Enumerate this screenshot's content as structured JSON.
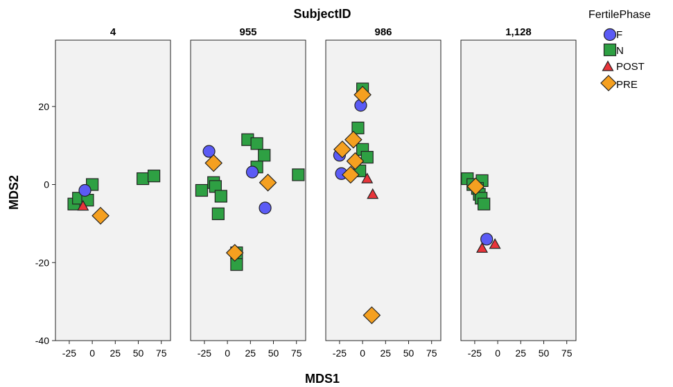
{
  "chart_data": {
    "type": "scatter",
    "title": "",
    "facet_label": "SubjectID",
    "xlabel": "MDS1",
    "ylabel": "MDS2",
    "xlim": [
      -40,
      85
    ],
    "ylim": [
      -40,
      37
    ],
    "x_ticks": [
      -25,
      0,
      25,
      50,
      75
    ],
    "x_tick_labels": [
      "-25",
      "0",
      "25",
      "50",
      "75"
    ],
    "y_ticks": [
      20,
      0,
      -20,
      -40
    ],
    "y_tick_labels": [
      "20",
      "0",
      "-20",
      "-40"
    ],
    "grid": false,
    "legend": {
      "title": "FertilePhase",
      "position": "top-right",
      "entries": [
        {
          "label": "F",
          "shape": "circle",
          "color": "#5b5bf5"
        },
        {
          "label": "N",
          "shape": "square",
          "color": "#2ea043"
        },
        {
          "label": "POST",
          "shape": "triangle",
          "color": "#e8343a"
        },
        {
          "label": "PRE",
          "shape": "diamond",
          "color": "#f5a020"
        }
      ]
    },
    "panels": [
      {
        "title": "4",
        "series": [
          {
            "name": "F",
            "points": [
              [
                -8,
                -1.5
              ]
            ]
          },
          {
            "name": "N",
            "points": [
              [
                -20,
                -5
              ],
              [
                -15,
                -3.5
              ],
              [
                -5,
                -4
              ],
              [
                0,
                0
              ],
              [
                55,
                1.5
              ],
              [
                67,
                2.2
              ]
            ]
          },
          {
            "name": "POST",
            "points": [
              [
                -10,
                -5.5
              ]
            ]
          },
          {
            "name": "PRE",
            "points": [
              [
                9,
                -8
              ]
            ]
          }
        ]
      },
      {
        "title": "955",
        "series": [
          {
            "name": "F",
            "points": [
              [
                -20,
                8.5
              ],
              [
                27,
                3.2
              ],
              [
                41,
                -6
              ]
            ]
          },
          {
            "name": "N",
            "points": [
              [
                -28,
                -1.5
              ],
              [
                -15,
                0.5
              ],
              [
                -13,
                -0.5
              ],
              [
                -7,
                -3
              ],
              [
                -10,
                -7.5
              ],
              [
                22,
                11.5
              ],
              [
                32,
                10.5
              ],
              [
                40,
                7.5
              ],
              [
                32,
                4.5
              ],
              [
                77,
                2.5
              ],
              [
                10,
                -17.5
              ],
              [
                10,
                -20.5
              ]
            ]
          },
          {
            "name": "POST",
            "points": []
          },
          {
            "name": "PRE",
            "points": [
              [
                -15,
                5.5
              ],
              [
                44,
                0.5
              ],
              [
                8,
                -17.5
              ]
            ]
          }
        ]
      },
      {
        "title": "986",
        "series": [
          {
            "name": "F",
            "points": [
              [
                -25,
                7.5
              ],
              [
                -23,
                2.8
              ],
              [
                -2,
                20.3
              ]
            ]
          },
          {
            "name": "N",
            "points": [
              [
                -5,
                14.5
              ],
              [
                0,
                24.5
              ],
              [
                0,
                9
              ],
              [
                5,
                7
              ],
              [
                -3,
                3.5
              ]
            ]
          },
          {
            "name": "POST",
            "points": [
              [
                5,
                1.5
              ],
              [
                11,
                -2.5
              ]
            ]
          },
          {
            "name": "PRE",
            "points": [
              [
                -22,
                9
              ],
              [
                -10,
                11.5
              ],
              [
                -8,
                6
              ],
              [
                -13,
                2.5
              ],
              [
                0,
                23
              ],
              [
                10,
                -33.5
              ]
            ]
          }
        ]
      },
      {
        "title": "1,128",
        "series": [
          {
            "name": "F",
            "points": [
              [
                -12,
                -14
              ]
            ]
          },
          {
            "name": "N",
            "points": [
              [
                -33,
                1.5
              ],
              [
                -27,
                0
              ],
              [
                -17,
                1
              ],
              [
                -22,
                -1
              ],
              [
                -20,
                -2.5
              ],
              [
                -18,
                -3.5
              ],
              [
                -15,
                -5
              ]
            ]
          },
          {
            "name": "POST",
            "points": [
              [
                -17,
                -16.3
              ],
              [
                -3,
                -15.3
              ]
            ]
          },
          {
            "name": "PRE",
            "points": [
              [
                -24,
                -0.5
              ]
            ]
          }
        ]
      }
    ]
  }
}
